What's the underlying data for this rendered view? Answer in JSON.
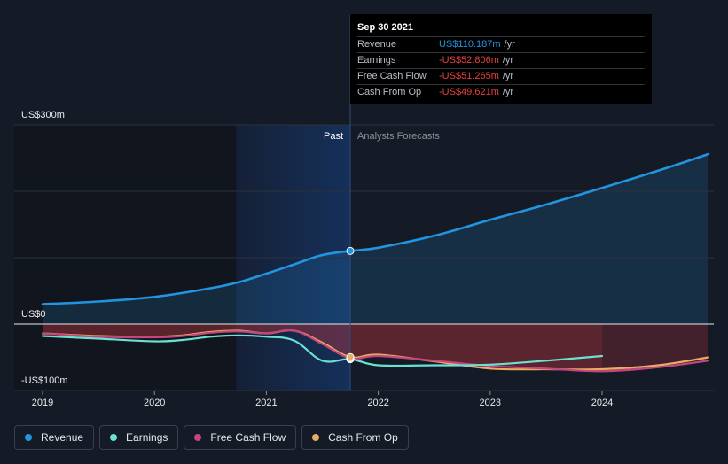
{
  "tooltip": {
    "date": "Sep 30 2021",
    "rows": [
      {
        "label": "Revenue",
        "value": "US$110.187m",
        "unit": "/yr",
        "color": "#2394df"
      },
      {
        "label": "Earnings",
        "value": "-US$52.806m",
        "unit": "/yr",
        "color": "#e64141"
      },
      {
        "label": "Free Cash Flow",
        "value": "-US$51.265m",
        "unit": "/yr",
        "color": "#e64141"
      },
      {
        "label": "Cash From Op",
        "value": "-US$49.621m",
        "unit": "/yr",
        "color": "#e64141"
      }
    ]
  },
  "regions": {
    "past": "Past",
    "forecast": "Analysts Forecasts"
  },
  "legend": [
    {
      "label": "Revenue",
      "color": "#2394df"
    },
    {
      "label": "Earnings",
      "color": "#6ce0d3"
    },
    {
      "label": "Free Cash Flow",
      "color": "#c5467f"
    },
    {
      "label": "Cash From Op",
      "color": "#e8ac64"
    }
  ],
  "chart_data": {
    "type": "line",
    "y_tick_labels": [
      {
        "label": "US$300m",
        "value": 300
      },
      {
        "label": "US$0",
        "value": 0
      },
      {
        "label": "-US$100m",
        "value": -100
      }
    ],
    "x_tick_labels": [
      "2019",
      "2020",
      "2021",
      "2022",
      "2023",
      "2024"
    ],
    "ylim": [
      -100,
      300
    ],
    "xlim": [
      2018.75,
      2024.95
    ],
    "past_end": 2021.75,
    "highlight_start": 2020.73,
    "series": [
      {
        "name": "Revenue",
        "color": "#2394df",
        "points": [
          [
            2019.0,
            30
          ],
          [
            2019.5,
            34
          ],
          [
            2020.0,
            41
          ],
          [
            2020.5,
            54
          ],
          [
            2020.75,
            63
          ],
          [
            2021.0,
            76
          ],
          [
            2021.25,
            90
          ],
          [
            2021.5,
            104
          ],
          [
            2021.75,
            110.2
          ],
          [
            2022.0,
            115
          ],
          [
            2022.5,
            133
          ],
          [
            2023.0,
            157
          ],
          [
            2023.5,
            180
          ],
          [
            2024.0,
            205
          ],
          [
            2024.5,
            231
          ],
          [
            2024.95,
            256
          ]
        ]
      },
      {
        "name": "Earnings",
        "color": "#6ce0d3",
        "points": [
          [
            2019.0,
            -18
          ],
          [
            2019.5,
            -22
          ],
          [
            2020.0,
            -26
          ],
          [
            2020.25,
            -24
          ],
          [
            2020.5,
            -19
          ],
          [
            2020.75,
            -17
          ],
          [
            2021.0,
            -19
          ],
          [
            2021.25,
            -25
          ],
          [
            2021.5,
            -55
          ],
          [
            2021.75,
            -52.8
          ],
          [
            2022.0,
            -62
          ],
          [
            2022.5,
            -62
          ],
          [
            2023.0,
            -61
          ],
          [
            2023.5,
            -55
          ],
          [
            2024.0,
            -48
          ]
        ]
      },
      {
        "name": "Free Cash Flow",
        "color": "#c5467f",
        "points": [
          [
            2019.0,
            -14
          ],
          [
            2019.5,
            -19
          ],
          [
            2020.0,
            -20
          ],
          [
            2020.25,
            -18
          ],
          [
            2020.5,
            -13
          ],
          [
            2020.75,
            -11
          ],
          [
            2021.0,
            -14
          ],
          [
            2021.25,
            -10
          ],
          [
            2021.5,
            -30
          ],
          [
            2021.75,
            -51.3
          ],
          [
            2022.0,
            -48
          ],
          [
            2022.5,
            -55
          ],
          [
            2023.0,
            -63
          ],
          [
            2023.5,
            -67
          ],
          [
            2024.0,
            -71
          ],
          [
            2024.5,
            -65
          ],
          [
            2024.95,
            -55
          ]
        ]
      },
      {
        "name": "Cash From Op",
        "color": "#e8ac64",
        "points": [
          [
            2019.0,
            -14
          ],
          [
            2019.5,
            -18
          ],
          [
            2020.0,
            -19
          ],
          [
            2020.25,
            -17
          ],
          [
            2020.5,
            -12
          ],
          [
            2020.75,
            -10
          ],
          [
            2021.0,
            -14
          ],
          [
            2021.25,
            -10
          ],
          [
            2021.5,
            -28
          ],
          [
            2021.75,
            -49.6
          ],
          [
            2022.0,
            -46
          ],
          [
            2022.5,
            -56
          ],
          [
            2023.0,
            -67
          ],
          [
            2023.5,
            -68
          ],
          [
            2024.0,
            -68
          ],
          [
            2024.5,
            -62
          ],
          [
            2024.95,
            -50
          ]
        ]
      }
    ]
  }
}
